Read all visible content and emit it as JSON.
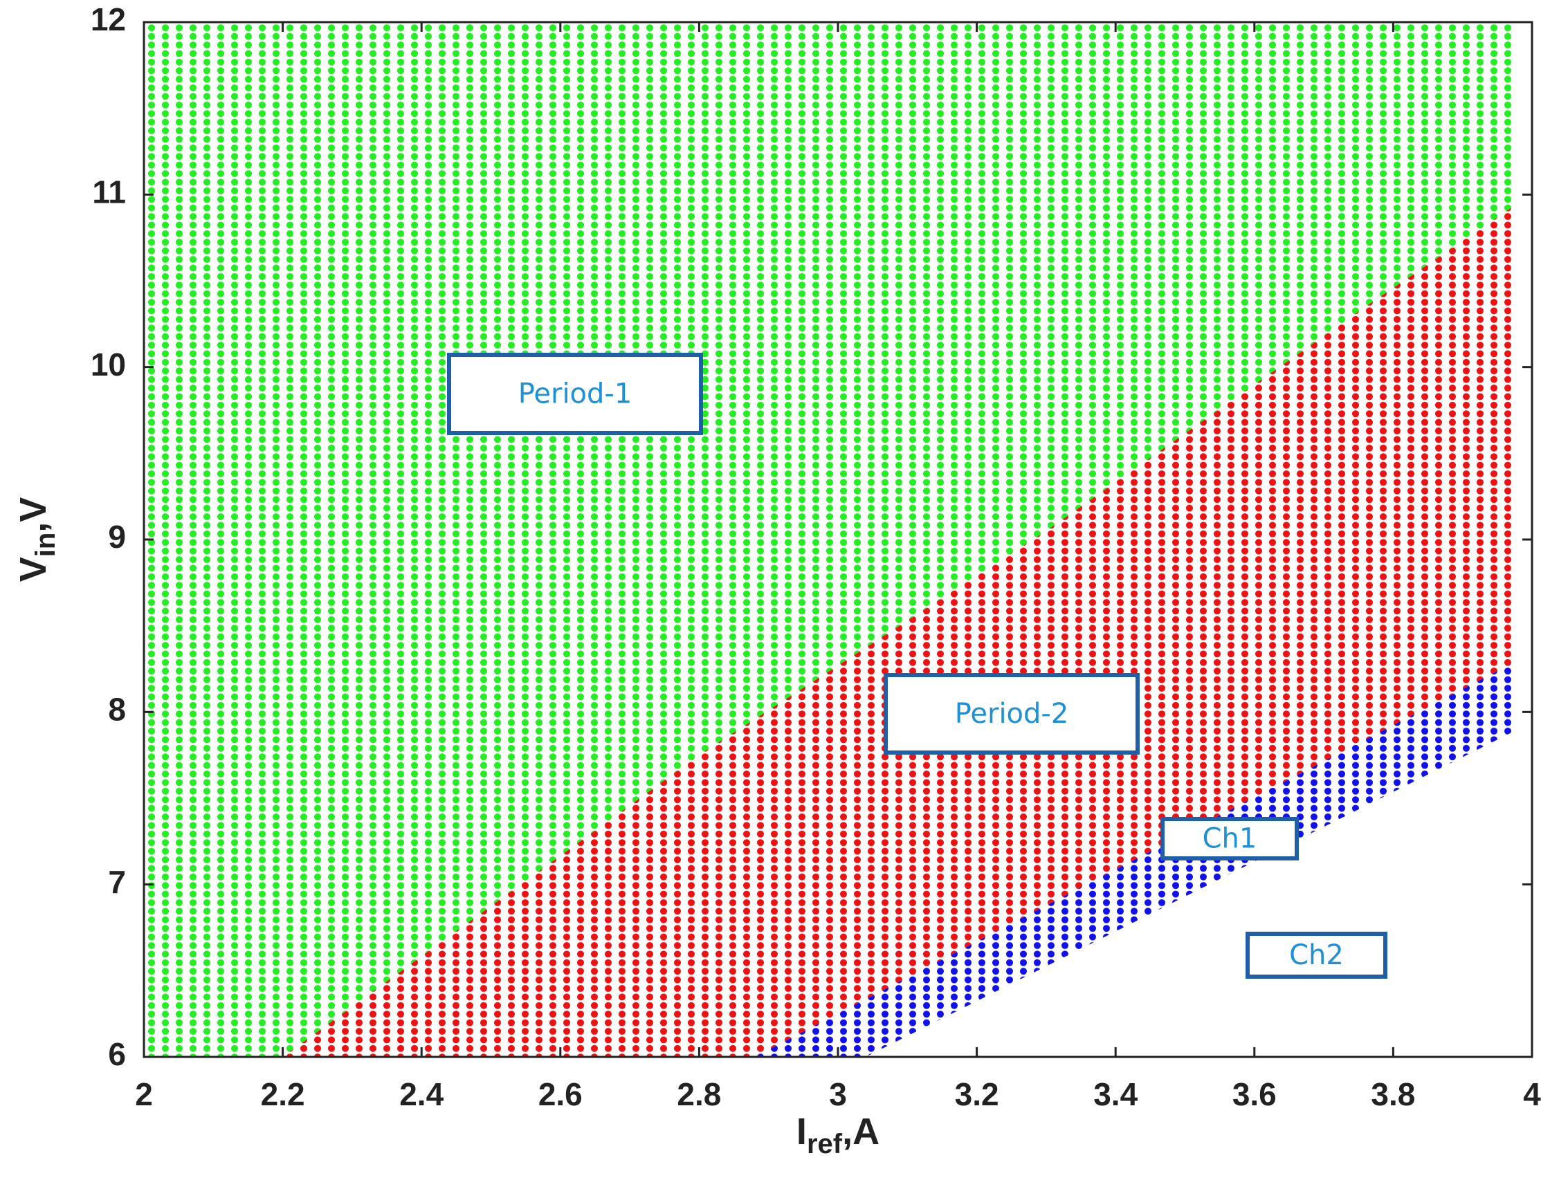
{
  "chart_data": {
    "type": "region",
    "xlabel": "I",
    "xlabel_sub": "ref",
    "xlabel_tail": ",A",
    "ylabel": "V",
    "ylabel_sub": "in",
    "ylabel_tail": ",V",
    "xlim": [
      2,
      4
    ],
    "xticks": [
      2,
      2.2,
      2.4,
      2.6,
      2.8,
      3,
      3.2,
      3.4,
      3.6,
      3.8,
      4
    ],
    "ylim": [
      6,
      12
    ],
    "yticks": [
      6,
      7,
      8,
      9,
      10,
      11,
      12
    ],
    "series": [
      {
        "name": "Period-1",
        "color": "#22ee22",
        "x": [
          2,
          2.2,
          2.8,
          3.3,
          3.76,
          3.98,
          3.98,
          2
        ],
        "values": [
          6,
          6,
          7.75,
          9.05,
          10.35,
          10.95,
          12,
          12
        ]
      },
      {
        "name": "Period-2",
        "color": "#ee1111",
        "x": [
          2.2,
          2.88,
          3.98,
          3.98,
          3.76,
          3.3,
          2.8
        ],
        "values": [
          6,
          6,
          8.3,
          10.95,
          10.35,
          9.05,
          7.75
        ]
      },
      {
        "name": "Ch1",
        "color": "#1111ee",
        "x": [
          2.88,
          3.04,
          3.98,
          3.98
        ],
        "values": [
          6,
          6,
          7.9,
          8.3
        ]
      },
      {
        "name": "Ch2",
        "color": "#ffffff",
        "x": [
          3.04,
          4,
          4
        ],
        "values": [
          6,
          6,
          7.9
        ]
      }
    ]
  }
}
